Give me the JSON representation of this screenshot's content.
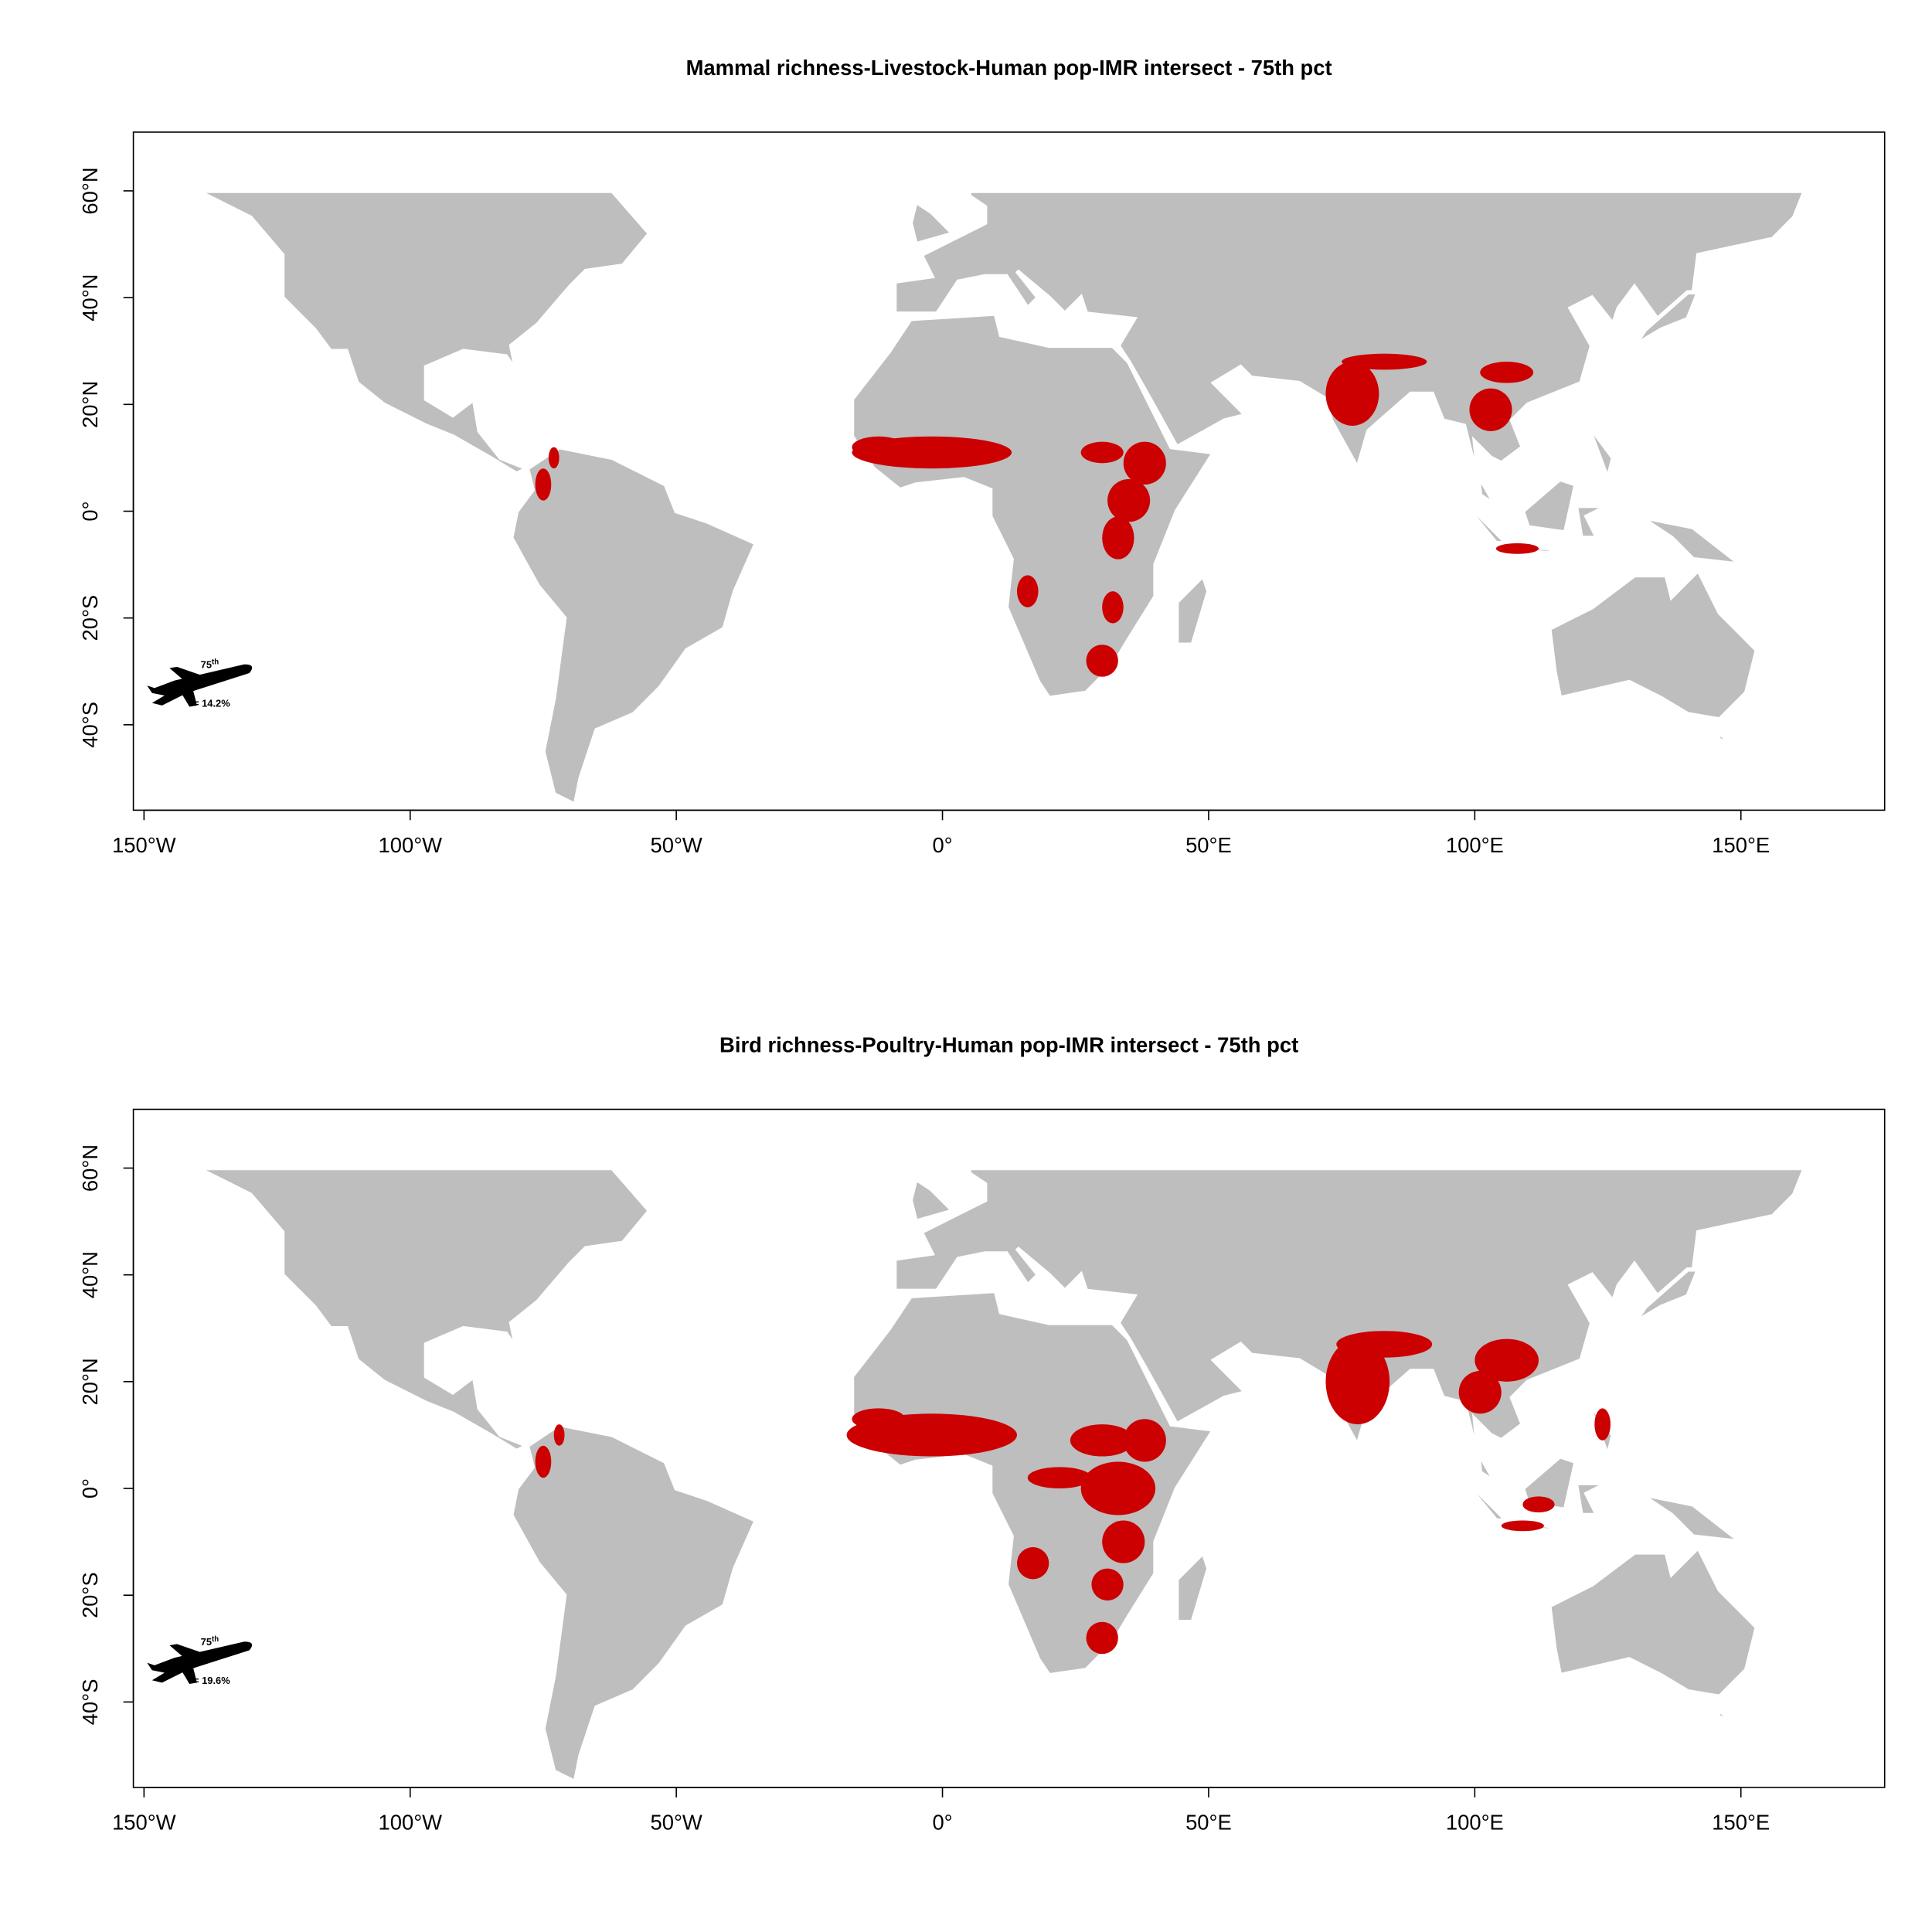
{
  "panels": [
    {
      "title": "Mammal richness-Livestock-Human pop-IMR intersect - 75th pct",
      "legend": {
        "percentile": "75",
        "suffix": "th",
        "share": "= 14.2%"
      },
      "xlim": [
        -152,
        177
      ],
      "ylim": [
        -56,
        71
      ],
      "xticks": [
        {
          "value": -150,
          "label": "150°W"
        },
        {
          "value": -100,
          "label": "100°W"
        },
        {
          "value": -50,
          "label": "50°W"
        },
        {
          "value": 0,
          "label": "0°"
        },
        {
          "value": 50,
          "label": "50°E"
        },
        {
          "value": 100,
          "label": "100°E"
        },
        {
          "value": 150,
          "label": "150°E"
        }
      ],
      "yticks": [
        {
          "value": -40,
          "label": "40°S"
        },
        {
          "value": -20,
          "label": "20°S"
        },
        {
          "value": 0,
          "label": "0°"
        },
        {
          "value": 20,
          "label": "20°N"
        },
        {
          "value": 40,
          "label": "40°N"
        },
        {
          "value": 60,
          "label": "60°N"
        }
      ]
    },
    {
      "title": "Bird richness-Poultry-Human pop-IMR intersect - 75th pct",
      "legend": {
        "percentile": "75",
        "suffix": "th",
        "share": "= 19.6%"
      },
      "xlim": [
        -152,
        177
      ],
      "ylim": [
        -56,
        71
      ],
      "xticks": [
        {
          "value": -150,
          "label": "150°W"
        },
        {
          "value": -100,
          "label": "100°W"
        },
        {
          "value": -50,
          "label": "50°W"
        },
        {
          "value": 0,
          "label": "0°"
        },
        {
          "value": 50,
          "label": "50°E"
        },
        {
          "value": 100,
          "label": "100°E"
        },
        {
          "value": 150,
          "label": "150°E"
        }
      ],
      "yticks": [
        {
          "value": -40,
          "label": "40°S"
        },
        {
          "value": -20,
          "label": "20°S"
        },
        {
          "value": 0,
          "label": "0°"
        },
        {
          "value": 20,
          "label": "20°N"
        },
        {
          "value": 40,
          "label": "40°N"
        },
        {
          "value": 60,
          "label": "60°N"
        }
      ]
    }
  ]
}
